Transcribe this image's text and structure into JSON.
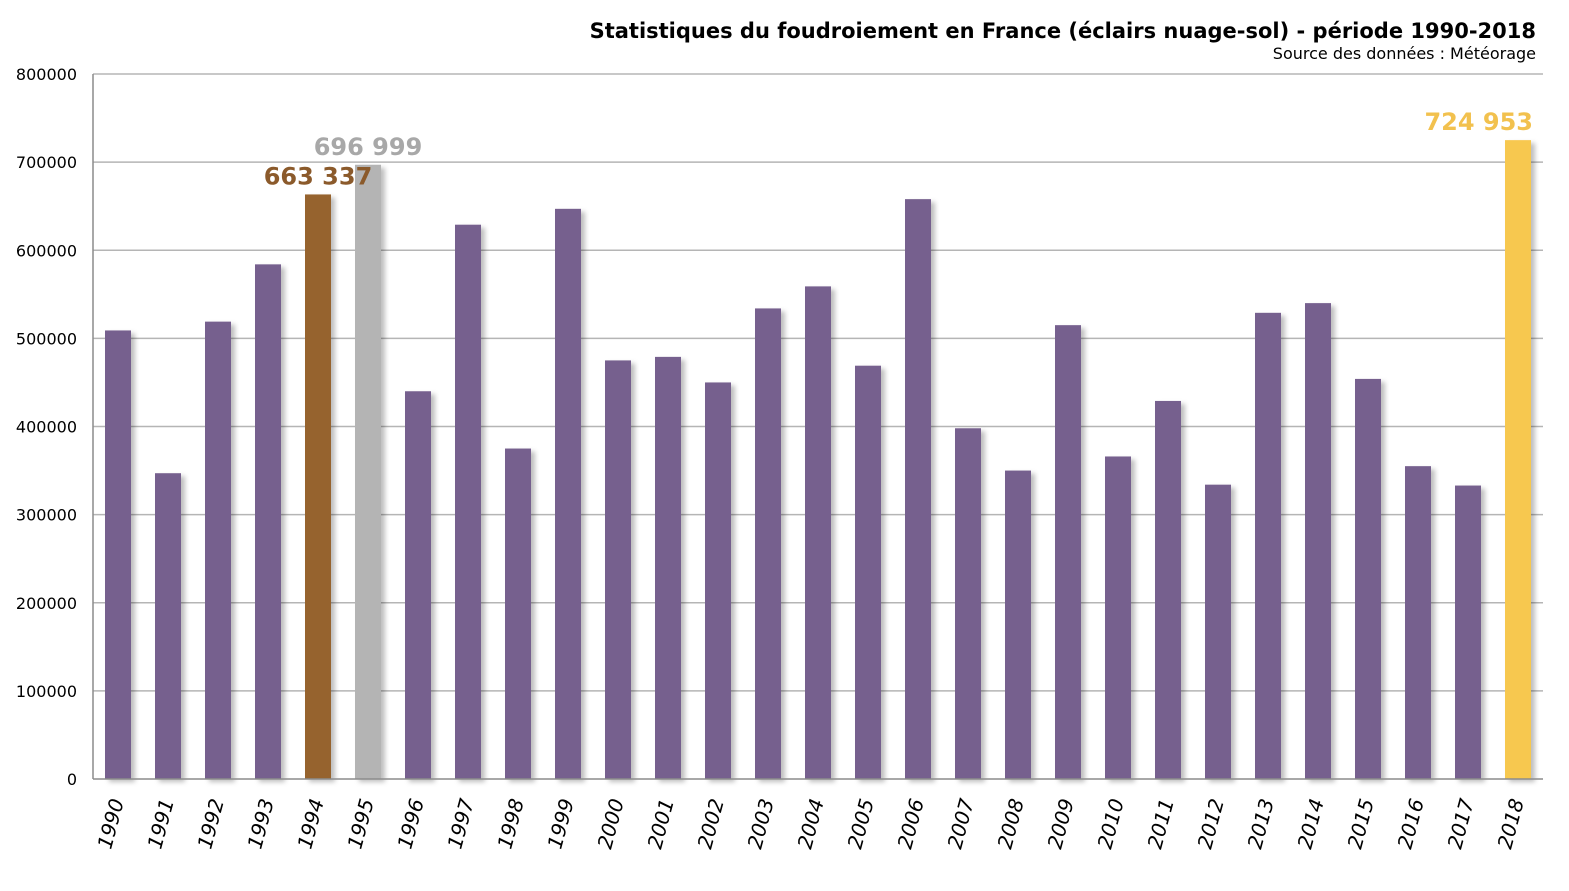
{
  "chart_data": {
    "type": "bar",
    "title": "Statistiques du foudroiement en France (éclairs nuage-sol) - période 1990-2018",
    "subtitle": "Source des données : Météorage",
    "xlabel": "",
    "ylabel": "",
    "ylim": [
      0,
      800000
    ],
    "yticks": [
      "0",
      "100000",
      "200000",
      "300000",
      "400000",
      "500000",
      "600000",
      "700000",
      "800000"
    ],
    "grid": true,
    "categories": [
      "1990",
      "1991",
      "1992",
      "1993",
      "1994",
      "1995",
      "1996",
      "1997",
      "1998",
      "1999",
      "2000",
      "2001",
      "2002",
      "2003",
      "2004",
      "2005",
      "2006",
      "2007",
      "2008",
      "2009",
      "2010",
      "2011",
      "2012",
      "2013",
      "2014",
      "2015",
      "2016",
      "2017",
      "2018"
    ],
    "values": [
      509000,
      347000,
      519000,
      584000,
      663337,
      696999,
      440000,
      629000,
      375000,
      647000,
      475000,
      479000,
      450000,
      534000,
      559000,
      469000,
      658000,
      398000,
      350000,
      515000,
      366000,
      429000,
      334000,
      529000,
      540000,
      454000,
      355000,
      333000,
      724953
    ],
    "default_color": "#76608e",
    "highlights": [
      {
        "category": "1994",
        "label": "663 337",
        "color": "#96632f",
        "label_color": "#8b5a2b"
      },
      {
        "category": "1995",
        "label": "696 999",
        "color": "#b4b4b4",
        "label_color": "#a8a8a8"
      },
      {
        "category": "2018",
        "label": "724 953",
        "color": "#f7c84f",
        "label_color": "#f2c14e"
      }
    ]
  }
}
